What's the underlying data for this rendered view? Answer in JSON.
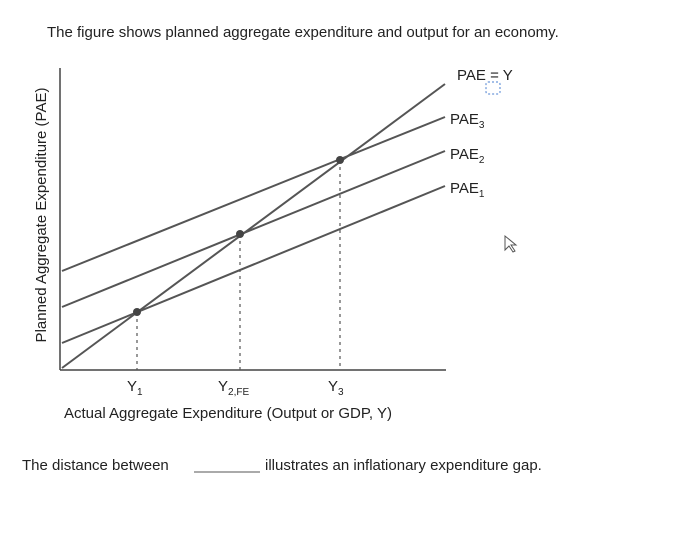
{
  "question": "The figure shows planned aggregate expenditure and output for an economy.",
  "diagram": {
    "y_axis_label": "Planned Aggregate Expenditure (PAE)",
    "x_axis_label": "Actual Aggregate Expenditure (Output or GDP, Y)",
    "lines": [
      {
        "base": "PAE = Y",
        "sub": null
      },
      {
        "base": "PAE",
        "sub": "3"
      },
      {
        "base": "PAE",
        "sub": "2"
      },
      {
        "base": "PAE",
        "sub": "1"
      }
    ],
    "x_labels": [
      {
        "base": "Y",
        "sub": "1"
      },
      {
        "base": "Y",
        "sub": "2,FE"
      },
      {
        "base": "Y",
        "sub": "3"
      }
    ]
  },
  "sentence": {
    "before": "The distance between",
    "after": "illustrates an inflationary expenditure gap."
  }
}
